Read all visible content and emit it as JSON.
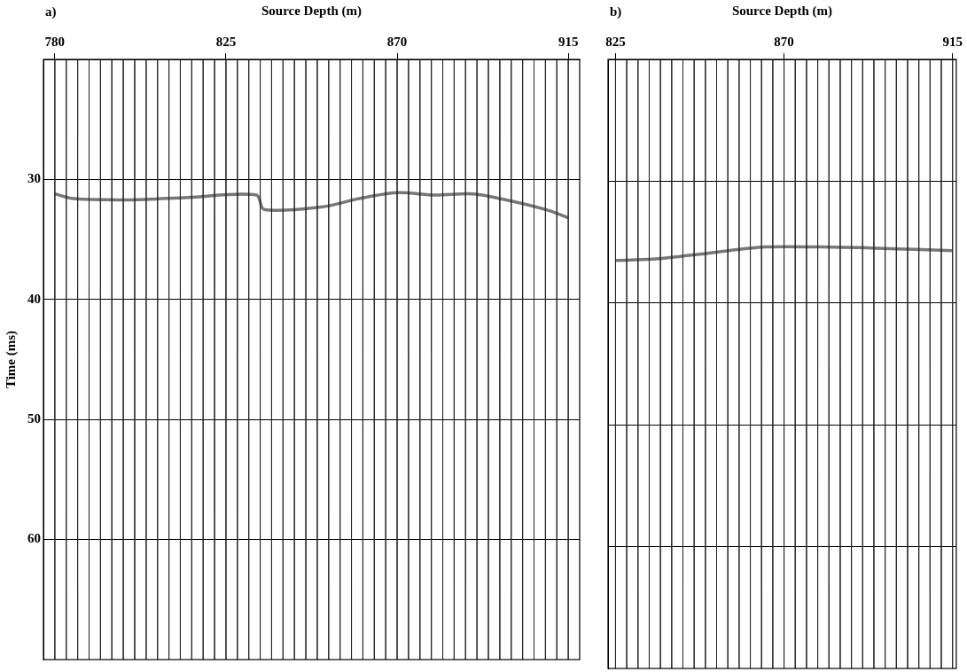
{
  "chart_data": [
    {
      "type": "line",
      "panel_label": "a)",
      "x_label": "Source Depth (m)",
      "y_label": "Time (ms)",
      "xlim": [
        777,
        918
      ],
      "xticks": [
        780,
        825,
        870,
        915
      ],
      "ylim": [
        20,
        70
      ],
      "yticks": [
        30,
        40,
        50,
        60
      ],
      "grid": true,
      "tick_labels": true,
      "color": "#777777",
      "x": [
        780,
        785,
        800,
        815,
        833,
        835,
        850,
        860,
        870,
        880,
        890,
        900,
        910,
        915
      ],
      "values": [
        31.2,
        31.6,
        31.7,
        31.5,
        31.3,
        32.5,
        32.3,
        31.6,
        31.1,
        31.3,
        31.2,
        31.8,
        32.6,
        33.2
      ],
      "trace_depths": [
        780,
        783,
        786,
        789,
        792,
        795,
        798,
        801,
        804,
        807,
        810,
        813,
        816,
        819,
        822,
        825,
        828,
        831,
        834,
        837,
        840,
        843,
        846,
        849,
        852,
        855,
        858,
        861,
        864,
        867,
        870,
        873,
        876,
        879,
        882,
        885,
        888,
        891,
        894,
        897,
        900,
        903,
        906,
        909,
        912,
        915
      ]
    },
    {
      "type": "line",
      "panel_label": "b)",
      "x_label": "Source Depth (m)",
      "xlim": [
        823,
        916
      ],
      "xticks": [
        825,
        870,
        915
      ],
      "ylim": [
        20,
        70
      ],
      "yticks": [
        30,
        40,
        50,
        60
      ],
      "grid": true,
      "tick_labels": "x",
      "color": "#777777",
      "x": [
        825,
        835,
        850,
        865,
        880,
        895,
        905,
        915
      ],
      "values": [
        36.5,
        36.4,
        35.9,
        35.4,
        35.4,
        35.5,
        35.6,
        35.7
      ],
      "trace_depths": [
        825,
        828,
        831,
        834,
        837,
        840,
        843,
        846,
        849,
        852,
        855,
        858,
        861,
        864,
        867,
        870,
        873,
        876,
        879,
        882,
        885,
        888,
        891,
        894,
        897,
        900,
        903,
        906,
        909,
        912,
        915
      ]
    }
  ]
}
